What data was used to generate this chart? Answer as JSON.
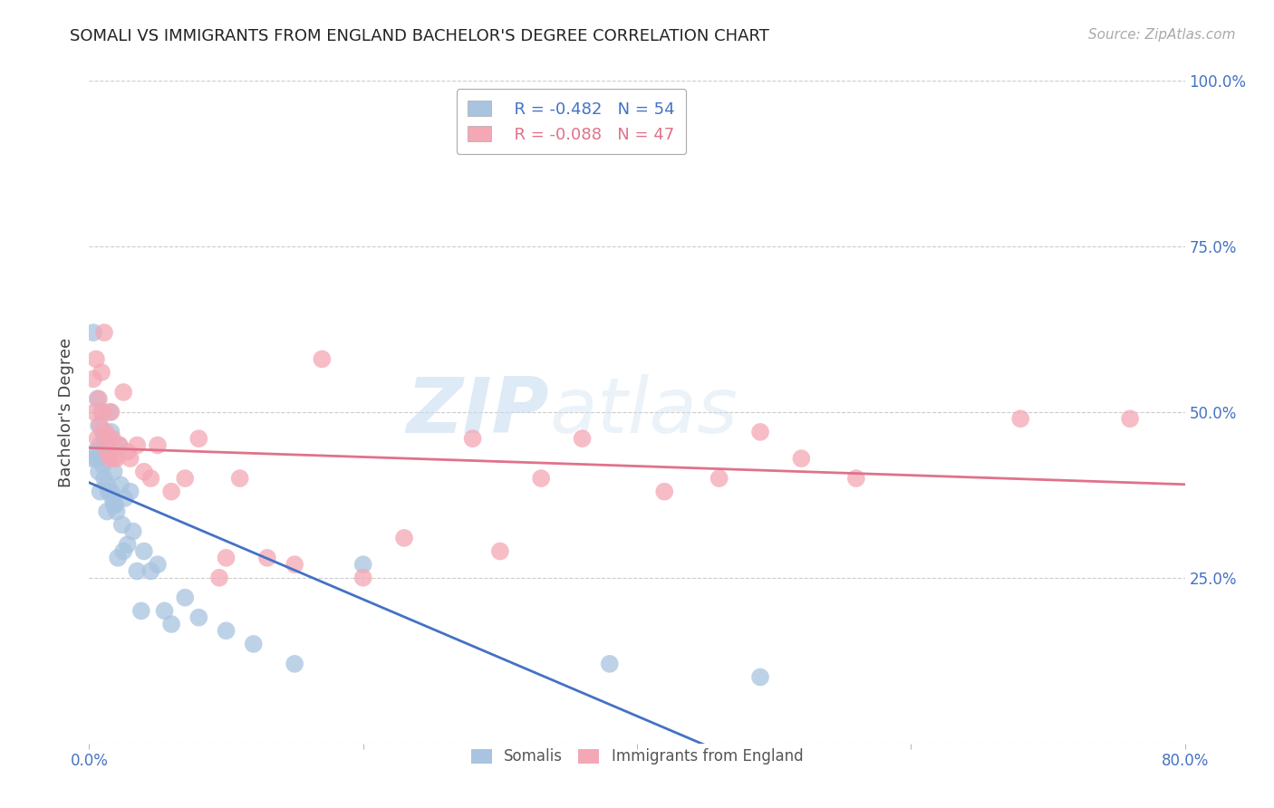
{
  "title": "SOMALI VS IMMIGRANTS FROM ENGLAND BACHELOR'S DEGREE CORRELATION CHART",
  "source": "Source: ZipAtlas.com",
  "ylabel": "Bachelor's Degree",
  "xlim": [
    0.0,
    0.8
  ],
  "ylim": [
    0.0,
    1.0
  ],
  "ytick_positions": [
    0.0,
    0.25,
    0.5,
    0.75,
    1.0
  ],
  "somali_color": "#a8c4e0",
  "england_color": "#f4a7b5",
  "somali_line_color": "#4472c4",
  "england_line_color": "#e0728a",
  "legend_r1": "R = -0.482",
  "legend_n1": "N = 54",
  "legend_r2": "R = -0.088",
  "legend_n2": "N = 47",
  "somali_x": [
    0.002,
    0.003,
    0.004,
    0.005,
    0.006,
    0.007,
    0.007,
    0.008,
    0.008,
    0.009,
    0.009,
    0.01,
    0.01,
    0.011,
    0.011,
    0.012,
    0.012,
    0.013,
    0.013,
    0.014,
    0.014,
    0.015,
    0.015,
    0.016,
    0.016,
    0.017,
    0.018,
    0.018,
    0.019,
    0.02,
    0.021,
    0.022,
    0.023,
    0.024,
    0.025,
    0.026,
    0.028,
    0.03,
    0.032,
    0.035,
    0.038,
    0.04,
    0.045,
    0.05,
    0.055,
    0.06,
    0.07,
    0.08,
    0.1,
    0.12,
    0.15,
    0.2,
    0.38,
    0.49
  ],
  "somali_y": [
    0.43,
    0.62,
    0.44,
    0.43,
    0.52,
    0.48,
    0.41,
    0.45,
    0.38,
    0.5,
    0.44,
    0.47,
    0.42,
    0.46,
    0.4,
    0.43,
    0.45,
    0.39,
    0.35,
    0.46,
    0.38,
    0.5,
    0.44,
    0.47,
    0.38,
    0.37,
    0.36,
    0.41,
    0.36,
    0.35,
    0.28,
    0.45,
    0.39,
    0.33,
    0.29,
    0.37,
    0.3,
    0.38,
    0.32,
    0.26,
    0.2,
    0.29,
    0.26,
    0.27,
    0.2,
    0.18,
    0.22,
    0.19,
    0.17,
    0.15,
    0.12,
    0.27,
    0.12,
    0.1
  ],
  "england_x": [
    0.003,
    0.004,
    0.005,
    0.006,
    0.007,
    0.008,
    0.009,
    0.01,
    0.011,
    0.012,
    0.013,
    0.014,
    0.015,
    0.016,
    0.017,
    0.018,
    0.02,
    0.022,
    0.025,
    0.028,
    0.03,
    0.035,
    0.04,
    0.045,
    0.05,
    0.06,
    0.07,
    0.08,
    0.095,
    0.1,
    0.11,
    0.13,
    0.15,
    0.17,
    0.2,
    0.23,
    0.28,
    0.3,
    0.33,
    0.36,
    0.42,
    0.46,
    0.49,
    0.52,
    0.56,
    0.68,
    0.76
  ],
  "england_y": [
    0.55,
    0.5,
    0.58,
    0.46,
    0.52,
    0.48,
    0.56,
    0.5,
    0.62,
    0.47,
    0.44,
    0.46,
    0.43,
    0.5,
    0.46,
    0.43,
    0.43,
    0.45,
    0.53,
    0.44,
    0.43,
    0.45,
    0.41,
    0.4,
    0.45,
    0.38,
    0.4,
    0.46,
    0.25,
    0.28,
    0.4,
    0.28,
    0.27,
    0.58,
    0.25,
    0.31,
    0.46,
    0.29,
    0.4,
    0.46,
    0.38,
    0.4,
    0.47,
    0.43,
    0.4,
    0.49,
    0.49
  ],
  "watermark_zip": "ZIP",
  "watermark_atlas": "atlas",
  "background_color": "#ffffff",
  "grid_color": "#cccccc"
}
